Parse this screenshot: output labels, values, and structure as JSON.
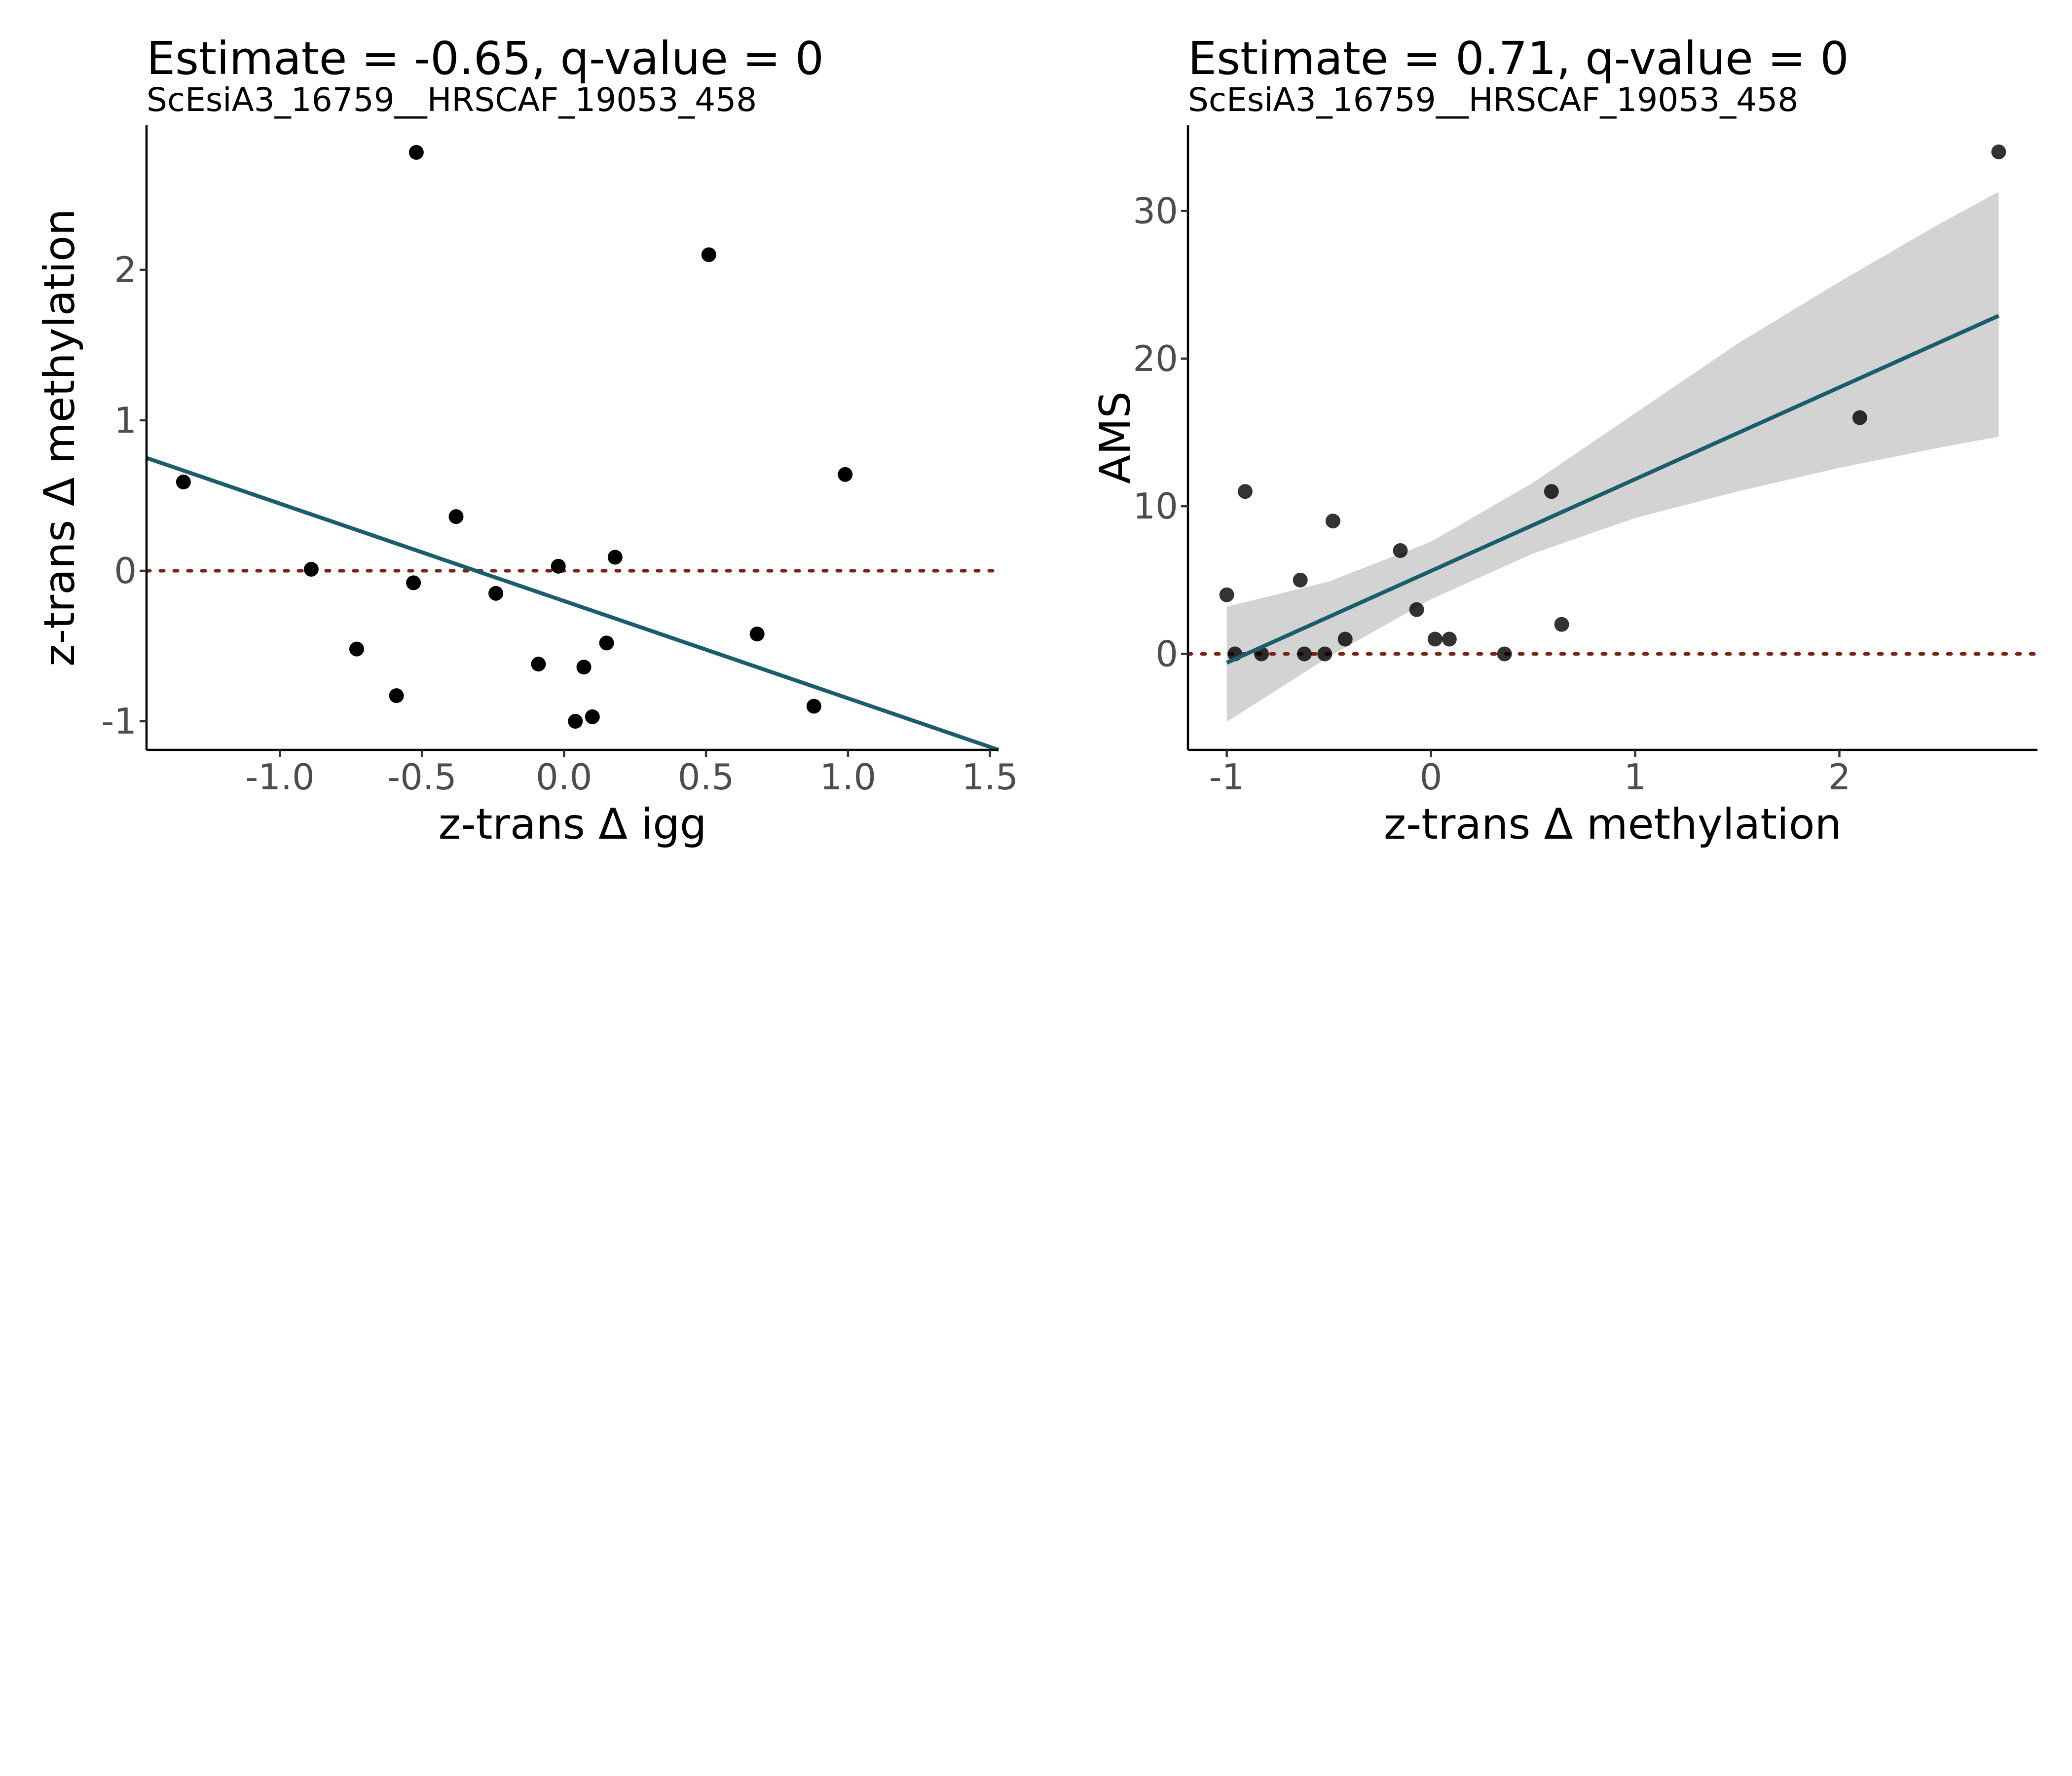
{
  "colors": {
    "line": "#1b5e6b",
    "ref_line": "#7a2214",
    "ribbon": "#d3d3d3",
    "point": "#000000"
  },
  "chart_data": [
    {
      "type": "scatter",
      "title": "Estimate = -0.65, q-value = 0",
      "subtitle": "ScEsiA3_16759__HRSCAF_19053_458",
      "xlabel": "z-trans Δ igg",
      "ylabel": "z-trans Δ methylation",
      "xlim": [
        -1.47,
        1.53
      ],
      "ylim": [
        -1.19,
        2.96
      ],
      "x_ticks": [
        -1.0,
        -0.5,
        0.0,
        0.5,
        1.0,
        1.5
      ],
      "x_tick_labels": [
        "-1.0",
        "-0.5",
        "0.0",
        "0.5",
        "1.0",
        "1.5"
      ],
      "y_ticks": [
        -1,
        0,
        1,
        2
      ],
      "y_tick_labels": [
        "-1",
        "0",
        "1",
        "2"
      ],
      "reference_line": {
        "y": 0,
        "style": "dotted"
      },
      "fit_line": {
        "x": [
          -1.47,
          1.53
        ],
        "y": [
          0.75,
          -1.19
        ]
      },
      "points": [
        {
          "x": -1.34,
          "y": 0.59
        },
        {
          "x": -0.89,
          "y": 0.01
        },
        {
          "x": -0.73,
          "y": -0.52
        },
        {
          "x": -0.59,
          "y": -0.83
        },
        {
          "x": -0.53,
          "y": -0.08
        },
        {
          "x": -0.52,
          "y": 2.78
        },
        {
          "x": -0.38,
          "y": 0.36
        },
        {
          "x": -0.24,
          "y": -0.15
        },
        {
          "x": -0.09,
          "y": -0.62
        },
        {
          "x": -0.02,
          "y": 0.03
        },
        {
          "x": 0.04,
          "y": -1.0
        },
        {
          "x": 0.07,
          "y": -0.64
        },
        {
          "x": 0.1,
          "y": -0.97
        },
        {
          "x": 0.15,
          "y": -0.48
        },
        {
          "x": 0.18,
          "y": 0.09
        },
        {
          "x": 0.51,
          "y": 2.1
        },
        {
          "x": 0.68,
          "y": -0.42
        },
        {
          "x": 0.88,
          "y": -0.9
        },
        {
          "x": 0.99,
          "y": 0.64
        }
      ]
    },
    {
      "type": "scatter",
      "title": "Estimate = 0.71, q-value = 0",
      "subtitle": "ScEsiA3_16759__HRSCAF_19053_458",
      "xlabel": "z-trans Δ methylation",
      "ylabel": "AMS",
      "xlim": [
        -1.19,
        2.97
      ],
      "ylim": [
        -6.5,
        35.8
      ],
      "x_ticks": [
        -1,
        0,
        1,
        2
      ],
      "x_tick_labels": [
        "-1",
        "0",
        "1",
        "2"
      ],
      "y_ticks": [
        0,
        10,
        20,
        30
      ],
      "y_tick_labels": [
        "0",
        "10",
        "20",
        "30"
      ],
      "reference_line": {
        "y": 0,
        "style": "dotted"
      },
      "fit_line": {
        "x": [
          -1.0,
          2.78
        ],
        "y": [
          -0.6,
          22.9
        ]
      },
      "confidence_band": {
        "x": [
          -1.0,
          -0.5,
          0.0,
          0.5,
          1.0,
          1.5,
          2.0,
          2.5,
          2.78
        ],
        "upper": [
          3.2,
          4.9,
          7.6,
          11.6,
          16.3,
          21.0,
          25.2,
          29.2,
          31.3
        ],
        "lower": [
          -4.6,
          -0.2,
          3.7,
          6.8,
          9.2,
          11.0,
          12.6,
          14.0,
          14.7
        ]
      },
      "points": [
        {
          "x": -1.0,
          "y": 4
        },
        {
          "x": -0.96,
          "y": 0
        },
        {
          "x": -0.91,
          "y": 11
        },
        {
          "x": -0.83,
          "y": 0
        },
        {
          "x": -0.64,
          "y": 5
        },
        {
          "x": -0.62,
          "y": 0
        },
        {
          "x": -0.52,
          "y": 0
        },
        {
          "x": -0.48,
          "y": 9
        },
        {
          "x": -0.42,
          "y": 1
        },
        {
          "x": -0.15,
          "y": 7
        },
        {
          "x": -0.07,
          "y": 3
        },
        {
          "x": 0.02,
          "y": 1
        },
        {
          "x": 0.09,
          "y": 1
        },
        {
          "x": 0.36,
          "y": 0
        },
        {
          "x": 0.59,
          "y": 11
        },
        {
          "x": 0.64,
          "y": 2
        },
        {
          "x": 2.1,
          "y": 16
        },
        {
          "x": 2.78,
          "y": 34
        }
      ]
    }
  ]
}
